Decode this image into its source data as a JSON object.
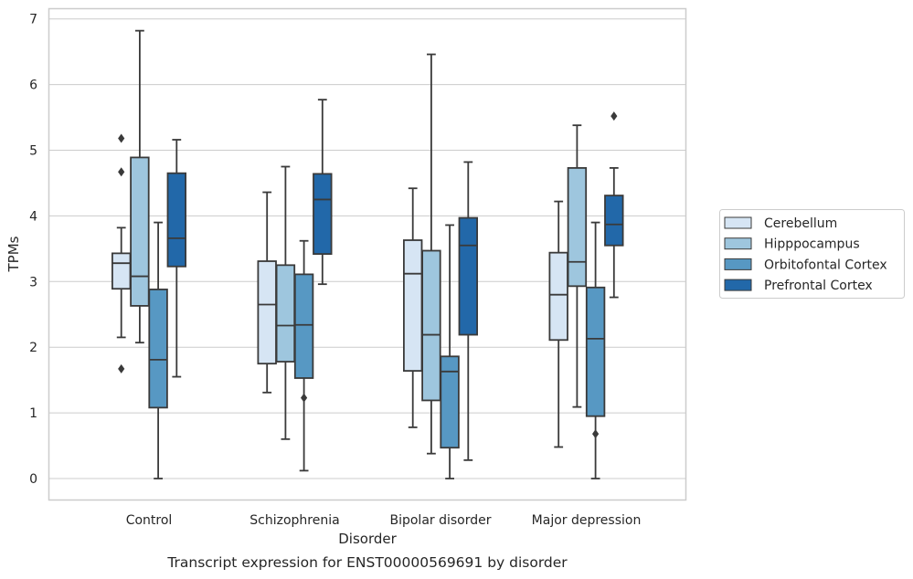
{
  "chart_data": {
    "type": "box",
    "caption": "Transcript expression for ENST00000569691 by disorder",
    "xlabel": "Disorder",
    "ylabel": "TPMs",
    "ylim": [
      -0.33,
      7.15
    ],
    "yticks": [
      0,
      1,
      2,
      3,
      4,
      5,
      6,
      7
    ],
    "grid": true,
    "legend_position": "right",
    "categories": [
      "Control",
      "Schizophrenia",
      "Bipolar disorder",
      "Major depression"
    ],
    "series": [
      {
        "name": "Cerebellum",
        "color": "#d6e5f4",
        "boxes": [
          {
            "whislo": 2.15,
            "q1": 2.89,
            "med": 3.28,
            "q3": 3.43,
            "whishi": 3.82,
            "fliers": [
              5.18,
              4.67,
              1.67
            ]
          },
          {
            "whislo": 1.31,
            "q1": 1.75,
            "med": 2.65,
            "q3": 3.31,
            "whishi": 4.36,
            "fliers": []
          },
          {
            "whislo": 0.78,
            "q1": 1.64,
            "med": 3.12,
            "q3": 3.63,
            "whishi": 4.42,
            "fliers": []
          },
          {
            "whislo": 0.48,
            "q1": 2.11,
            "med": 2.8,
            "q3": 3.44,
            "whishi": 4.22,
            "fliers": []
          }
        ]
      },
      {
        "name": "Hipppocampus",
        "color": "#9ec6de",
        "boxes": [
          {
            "whislo": 2.07,
            "q1": 2.63,
            "med": 3.08,
            "q3": 4.89,
            "whishi": 6.82,
            "fliers": []
          },
          {
            "whislo": 0.6,
            "q1": 1.78,
            "med": 2.33,
            "q3": 3.25,
            "whishi": 4.75,
            "fliers": []
          },
          {
            "whislo": 0.38,
            "q1": 1.19,
            "med": 2.19,
            "q3": 3.47,
            "whishi": 6.46,
            "fliers": []
          },
          {
            "whislo": 1.09,
            "q1": 2.93,
            "med": 3.3,
            "q3": 4.73,
            "whishi": 5.38,
            "fliers": []
          }
        ]
      },
      {
        "name": "Orbitofontal Cortex",
        "color": "#5798c3",
        "boxes": [
          {
            "whislo": 0.0,
            "q1": 1.08,
            "med": 1.81,
            "q3": 2.88,
            "whishi": 3.9,
            "fliers": []
          },
          {
            "whislo": 0.12,
            "q1": 1.53,
            "med": 2.34,
            "q3": 3.11,
            "whishi": 3.62,
            "fliers": [
              1.23
            ]
          },
          {
            "whislo": 0.0,
            "q1": 0.47,
            "med": 1.63,
            "q3": 1.86,
            "whishi": 3.86,
            "fliers": []
          },
          {
            "whislo": 0.0,
            "q1": 0.95,
            "med": 2.13,
            "q3": 2.91,
            "whishi": 3.9,
            "fliers": [
              0.68
            ]
          }
        ]
      },
      {
        "name": "Prefrontal Cortex",
        "color": "#2268a9",
        "boxes": [
          {
            "whislo": 1.55,
            "q1": 3.23,
            "med": 3.66,
            "q3": 4.65,
            "whishi": 5.16,
            "fliers": []
          },
          {
            "whislo": 2.96,
            "q1": 3.42,
            "med": 4.25,
            "q3": 4.64,
            "whishi": 5.77,
            "fliers": []
          },
          {
            "whislo": 0.28,
            "q1": 2.19,
            "med": 3.55,
            "q3": 3.97,
            "whishi": 4.82,
            "fliers": []
          },
          {
            "whislo": 2.76,
            "q1": 3.55,
            "med": 3.87,
            "q3": 4.31,
            "whishi": 4.73,
            "fliers": [
              5.52
            ]
          }
        ]
      }
    ]
  }
}
